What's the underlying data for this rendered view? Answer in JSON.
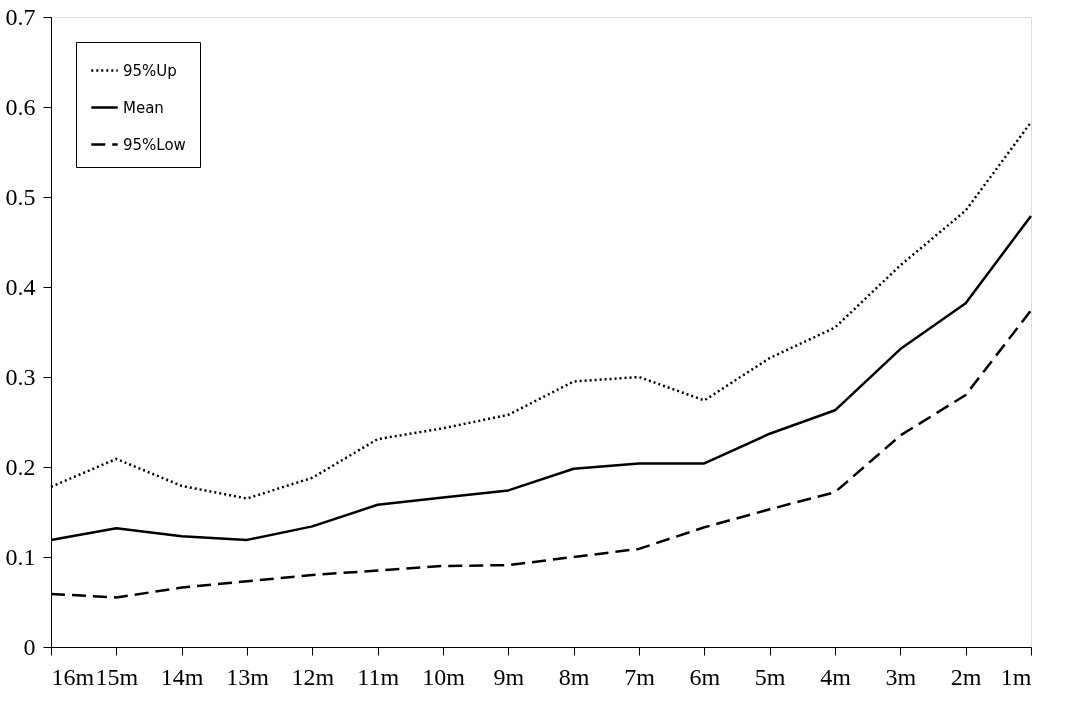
{
  "chart_data": {
    "type": "line",
    "categories": [
      "16m",
      "15m",
      "14m",
      "13m",
      "12m",
      "11m",
      "10m",
      "9m",
      "8m",
      "7m",
      "6m",
      "5m",
      "4m",
      "3m",
      "2m",
      "1m"
    ],
    "series": [
      {
        "name": "95%Up",
        "color": "#000000",
        "line_style": "dotted",
        "values": [
          0.178,
          0.209,
          0.179,
          0.165,
          0.188,
          0.231,
          0.243,
          0.258,
          0.295,
          0.3,
          0.274,
          0.321,
          0.355,
          0.424,
          0.485,
          0.583
        ]
      },
      {
        "name": "Mean",
        "color": "#000000",
        "line_style": "solid",
        "values": [
          0.119,
          0.132,
          0.123,
          0.119,
          0.134,
          0.158,
          0.166,
          0.174,
          0.198,
          0.204,
          0.204,
          0.237,
          0.263,
          0.331,
          0.382,
          0.479
        ]
      },
      {
        "name": "95%Low",
        "color": "#000000",
        "line_style": "dashed",
        "values": [
          0.059,
          0.055,
          0.066,
          0.073,
          0.08,
          0.085,
          0.09,
          0.091,
          0.1,
          0.109,
          0.133,
          0.153,
          0.172,
          0.235,
          0.28,
          0.374
        ]
      }
    ],
    "ylim": [
      0,
      0.7
    ],
    "yticks": [
      0,
      0.1,
      0.2,
      0.3,
      0.4,
      0.5,
      0.6,
      0.7
    ],
    "grid": false,
    "legend": "top left",
    "marker": "none"
  }
}
